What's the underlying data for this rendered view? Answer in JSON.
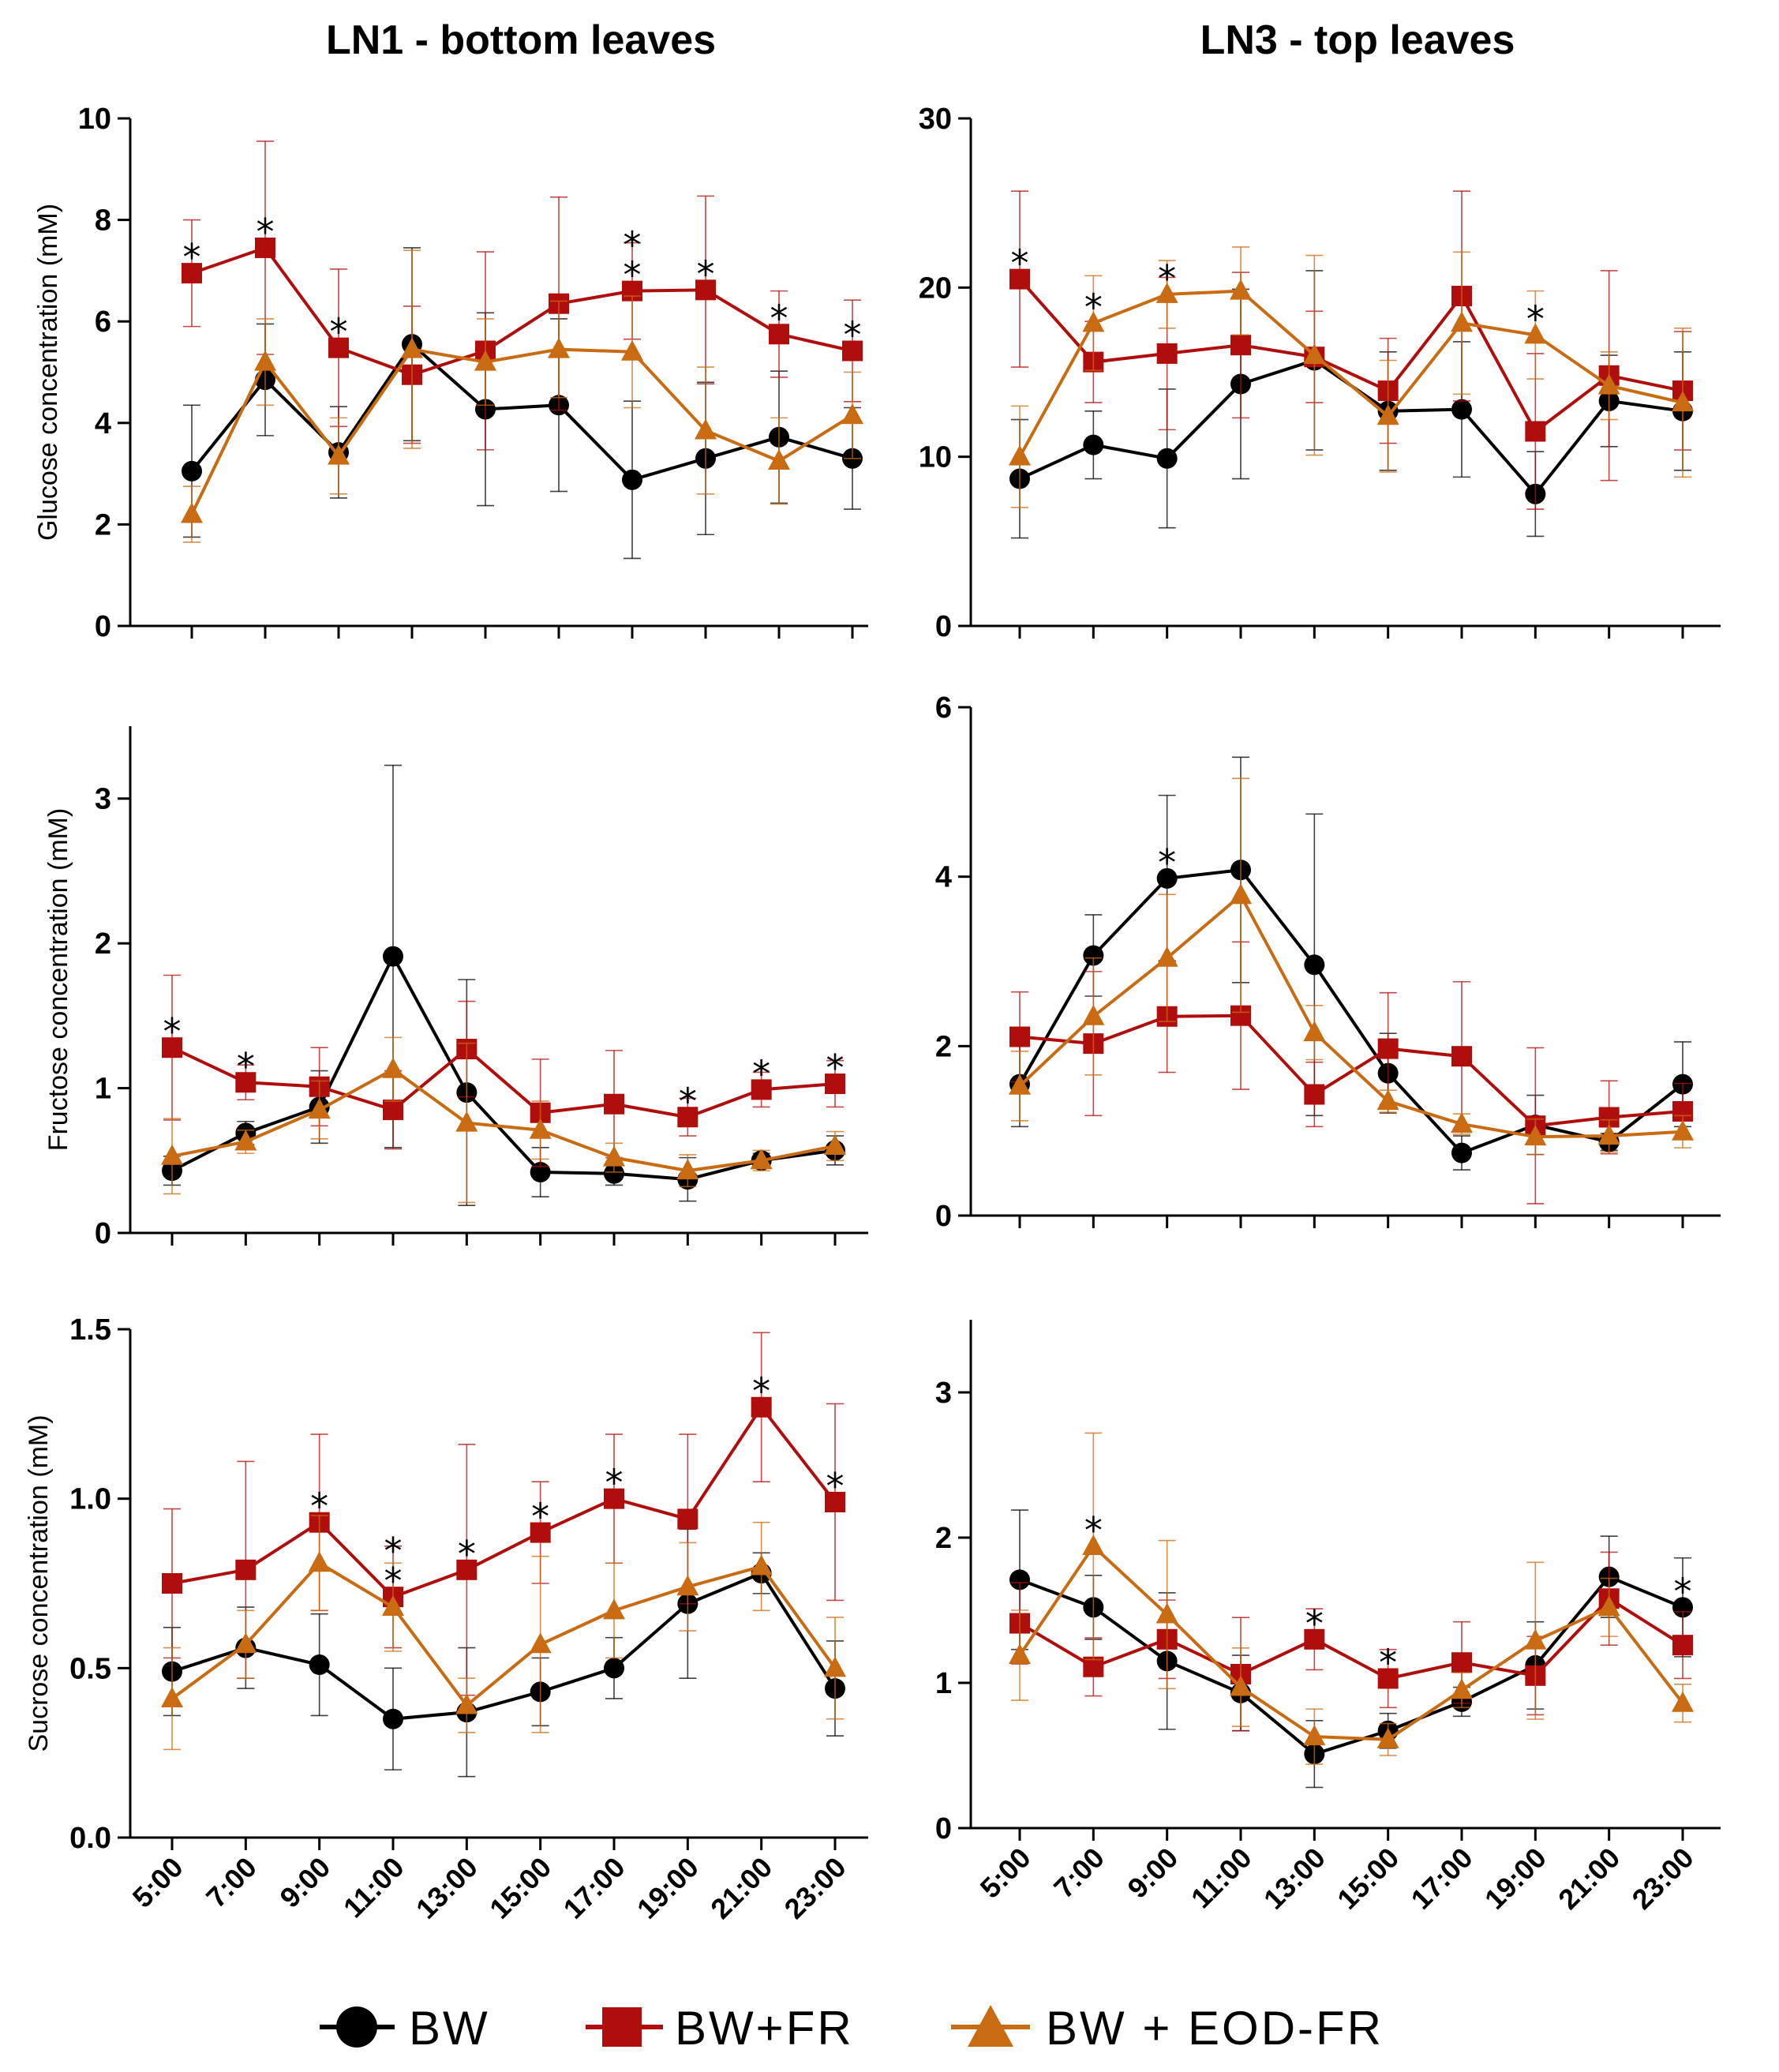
{
  "colors": {
    "BW": "#000000",
    "BW+FR": "#b00d0d",
    "BW + EOD-FR": "#c96b12"
  },
  "legend": {
    "items": [
      {
        "name": "BW",
        "label": "BW",
        "marker": "circle-icon"
      },
      {
        "name": "BW+FR",
        "label": "BW+FR",
        "marker": "square-icon"
      },
      {
        "name": "BW + EOD-FR",
        "label": "BW + EOD-FR",
        "marker": "triangle-icon"
      }
    ]
  },
  "chart_data": [
    {
      "type": "line",
      "id": "ln1-glucose",
      "title": "LN1 - bottom leaves",
      "xlabel": "",
      "ylabel": "Glucose concentration (mM)",
      "categories": [
        "5:00",
        "7:00",
        "9:00",
        "11:00",
        "13:00",
        "15:00",
        "17:00",
        "19:00",
        "21:00",
        "23:00"
      ],
      "ylim": [
        0,
        10
      ],
      "yticks": [
        0,
        2,
        4,
        6,
        8,
        10
      ],
      "ytick_labels": [
        "0",
        "2",
        "4",
        "6",
        "8",
        "10"
      ],
      "grid": false,
      "series": [
        {
          "name": "BW",
          "values": [
            3.05,
            4.85,
            3.42,
            5.55,
            4.27,
            4.35,
            2.88,
            3.3,
            3.72,
            3.3
          ],
          "errors": [
            1.3,
            1.1,
            0.9,
            1.9,
            1.9,
            1.7,
            1.55,
            1.5,
            1.3,
            1.0
          ]
        },
        {
          "name": "BW+FR",
          "values": [
            6.95,
            7.45,
            5.48,
            4.95,
            5.42,
            6.35,
            6.6,
            6.62,
            5.75,
            5.42
          ],
          "errors": [
            1.05,
            2.1,
            1.55,
            1.35,
            1.95,
            2.1,
            0.95,
            1.85,
            0.85,
            1.0
          ]
        },
        {
          "name": "BW + EOD-FR",
          "values": [
            2.2,
            5.2,
            3.35,
            5.45,
            5.2,
            5.45,
            5.4,
            3.85,
            3.25,
            4.15
          ],
          "errors": [
            0.55,
            0.85,
            0.75,
            1.95,
            0.85,
            0.95,
            1.1,
            1.25,
            0.85,
            0.85
          ]
        }
      ],
      "significance": [
        {
          "category": "5:00",
          "labels": [
            "*"
          ]
        },
        {
          "category": "7:00",
          "labels": [
            "*"
          ]
        },
        {
          "category": "9:00",
          "labels": [
            "*"
          ]
        },
        {
          "category": "17:00",
          "labels": [
            "*",
            "*"
          ]
        },
        {
          "category": "19:00",
          "labels": [
            "*"
          ]
        },
        {
          "category": "21:00",
          "labels": [
            "*"
          ]
        },
        {
          "category": "23:00",
          "labels": [
            "*"
          ]
        }
      ]
    },
    {
      "type": "line",
      "id": "ln3-glucose",
      "title": "LN3 - top leaves",
      "xlabel": "",
      "ylabel": "",
      "categories": [
        "5:00",
        "7:00",
        "9:00",
        "11:00",
        "13:00",
        "15:00",
        "17:00",
        "19:00",
        "21:00",
        "23:00"
      ],
      "ylim": [
        0,
        30
      ],
      "yticks": [
        0,
        10,
        20,
        30
      ],
      "ytick_labels": [
        "0",
        "10",
        "20",
        "30"
      ],
      "grid": false,
      "series": [
        {
          "name": "BW",
          "values": [
            8.7,
            10.7,
            9.9,
            14.3,
            15.7,
            12.7,
            12.8,
            7.8,
            13.3,
            12.7
          ],
          "errors": [
            3.5,
            2.0,
            4.1,
            5.6,
            5.3,
            3.5,
            4.0,
            2.5,
            2.7,
            3.5
          ]
        },
        {
          "name": "BW+FR",
          "values": [
            20.5,
            15.6,
            16.1,
            16.6,
            15.9,
            13.9,
            19.5,
            11.5,
            14.8,
            13.9
          ],
          "errors": [
            5.2,
            2.4,
            4.5,
            4.3,
            2.7,
            3.1,
            6.2,
            4.6,
            6.2,
            3.5
          ]
        },
        {
          "name": "BW + EOD-FR",
          "values": [
            10.0,
            17.9,
            19.6,
            19.8,
            16.0,
            12.4,
            17.9,
            17.2,
            14.2,
            13.2
          ],
          "errors": [
            3.0,
            2.8,
            2.0,
            2.6,
            5.9,
            3.3,
            4.2,
            2.6,
            2.0,
            4.4
          ]
        }
      ],
      "significance": [
        {
          "category": "5:00",
          "labels": [
            "*"
          ]
        },
        {
          "category": "7:00",
          "labels": [
            "*"
          ]
        },
        {
          "category": "9:00",
          "labels": [
            "*"
          ]
        },
        {
          "category": "19:00",
          "labels": [
            "*"
          ]
        }
      ]
    },
    {
      "type": "line",
      "id": "ln1-fructose",
      "title": "",
      "xlabel": "",
      "ylabel": "Fructose concentration (mM)",
      "categories": [
        "5:00",
        "7:00",
        "9:00",
        "11:00",
        "13:00",
        "15:00",
        "17:00",
        "19:00",
        "21:00",
        "23:00"
      ],
      "ylim": [
        0,
        3.5
      ],
      "yticks": [
        0,
        1,
        2,
        3
      ],
      "ytick_labels": [
        "0",
        "1",
        "2",
        "3"
      ],
      "grid": false,
      "series": [
        {
          "name": "BW",
          "values": [
            0.43,
            0.69,
            0.87,
            1.91,
            0.97,
            0.42,
            0.41,
            0.37,
            0.5,
            0.57
          ],
          "errors": [
            0.1,
            0.08,
            0.25,
            1.32,
            0.78,
            0.17,
            0.08,
            0.15,
            0.05,
            0.1
          ]
        },
        {
          "name": "BW+FR",
          "values": [
            1.28,
            1.04,
            1.01,
            0.85,
            1.27,
            0.83,
            0.89,
            0.8,
            0.99,
            1.03
          ],
          "errors": [
            0.5,
            0.12,
            0.27,
            0.27,
            0.33,
            0.37,
            0.37,
            0.13,
            0.12,
            0.16
          ]
        },
        {
          "name": "BW + EOD-FR",
          "values": [
            0.53,
            0.63,
            0.85,
            1.13,
            0.76,
            0.71,
            0.52,
            0.43,
            0.5,
            0.6
          ],
          "errors": [
            0.26,
            0.08,
            0.2,
            0.22,
            0.55,
            0.2,
            0.1,
            0.11,
            0.07,
            0.1
          ]
        }
      ],
      "significance": [
        {
          "category": "5:00",
          "labels": [
            "*"
          ]
        },
        {
          "category": "7:00",
          "labels": [
            "*"
          ]
        },
        {
          "category": "19:00",
          "labels": [
            "*"
          ]
        },
        {
          "category": "21:00",
          "labels": [
            "*"
          ]
        },
        {
          "category": "23:00",
          "labels": [
            "*"
          ]
        }
      ]
    },
    {
      "type": "line",
      "id": "ln3-fructose",
      "title": "",
      "xlabel": "",
      "ylabel": "",
      "categories": [
        "5:00",
        "7:00",
        "9:00",
        "11:00",
        "13:00",
        "15:00",
        "17:00",
        "19:00",
        "21:00",
        "23:00"
      ],
      "ylim": [
        0,
        6
      ],
      "yticks": [
        0,
        2,
        4,
        6
      ],
      "ytick_labels": [
        "0",
        "2",
        "4",
        "6"
      ],
      "grid": false,
      "series": [
        {
          "name": "BW",
          "values": [
            1.55,
            3.07,
            3.98,
            4.08,
            2.96,
            1.68,
            0.74,
            1.07,
            0.87,
            1.55
          ],
          "errors": [
            0.5,
            0.48,
            0.98,
            1.33,
            1.78,
            0.47,
            0.2,
            0.35,
            0.1,
            0.5
          ]
        },
        {
          "name": "BW+FR",
          "values": [
            2.11,
            2.03,
            2.35,
            2.36,
            1.43,
            1.97,
            1.88,
            1.06,
            1.16,
            1.23
          ],
          "errors": [
            0.53,
            0.85,
            0.66,
            0.87,
            0.38,
            0.66,
            0.88,
            0.92,
            0.43,
            0.33
          ]
        },
        {
          "name": "BW + EOD-FR",
          "values": [
            1.53,
            2.35,
            3.04,
            3.78,
            2.16,
            1.35,
            1.08,
            0.93,
            0.94,
            0.99
          ],
          "errors": [
            0.41,
            0.69,
            0.75,
            1.38,
            0.32,
            0.13,
            0.12,
            0.21,
            0.19,
            0.19
          ]
        }
      ],
      "significance": [
        {
          "category": "9:00",
          "labels": [
            "*"
          ]
        }
      ]
    },
    {
      "type": "line",
      "id": "ln1-sucrose",
      "title": "",
      "xlabel": "",
      "ylabel": "Sucrose concentration (mM)",
      "categories": [
        "5:00",
        "7:00",
        "9:00",
        "11:00",
        "13:00",
        "15:00",
        "17:00",
        "19:00",
        "21:00",
        "23:00"
      ],
      "ylim": [
        0,
        1.5
      ],
      "yticks": [
        0,
        0.5,
        1.0,
        1.5
      ],
      "ytick_labels": [
        "0.0",
        "0.5",
        "1.0",
        "1.5"
      ],
      "grid": false,
      "series": [
        {
          "name": "BW",
          "values": [
            0.49,
            0.56,
            0.51,
            0.35,
            0.37,
            0.43,
            0.5,
            0.69,
            0.78,
            0.44
          ],
          "errors": [
            0.13,
            0.12,
            0.15,
            0.15,
            0.19,
            0.1,
            0.09,
            0.22,
            0.06,
            0.14
          ]
        },
        {
          "name": "BW+FR",
          "values": [
            0.75,
            0.79,
            0.93,
            0.71,
            0.79,
            0.9,
            1.0,
            0.94,
            1.27,
            0.99
          ],
          "errors": [
            0.22,
            0.32,
            0.26,
            0.15,
            0.37,
            0.15,
            0.19,
            0.25,
            0.22,
            0.29
          ]
        },
        {
          "name": "BW + EOD-FR",
          "values": [
            0.41,
            0.57,
            0.81,
            0.68,
            0.39,
            0.57,
            0.67,
            0.74,
            0.8,
            0.5
          ],
          "errors": [
            0.15,
            0.1,
            0.14,
            0.13,
            0.08,
            0.26,
            0.14,
            0.13,
            0.13,
            0.15
          ]
        }
      ],
      "significance": [
        {
          "category": "9:00",
          "labels": [
            "*"
          ]
        },
        {
          "category": "11:00",
          "labels": [
            "*",
            "*"
          ]
        },
        {
          "category": "13:00",
          "labels": [
            "*"
          ]
        },
        {
          "category": "15:00",
          "labels": [
            "*"
          ]
        },
        {
          "category": "17:00",
          "labels": [
            "*"
          ]
        },
        {
          "category": "21:00",
          "labels": [
            "*"
          ]
        },
        {
          "category": "23:00",
          "labels": [
            "*"
          ]
        }
      ]
    },
    {
      "type": "line",
      "id": "ln3-sucrose",
      "title": "",
      "xlabel": "",
      "ylabel": "",
      "categories": [
        "5:00",
        "7:00",
        "9:00",
        "11:00",
        "13:00",
        "15:00",
        "17:00",
        "19:00",
        "21:00",
        "23:00"
      ],
      "ylim": [
        0,
        3.5
      ],
      "yticks": [
        0,
        1,
        2,
        3
      ],
      "ytick_labels": [
        "0",
        "1",
        "2",
        "3"
      ],
      "grid": false,
      "series": [
        {
          "name": "BW",
          "values": [
            1.71,
            1.52,
            1.15,
            0.93,
            0.51,
            0.67,
            0.87,
            1.12,
            1.73,
            1.52
          ],
          "errors": [
            0.48,
            0.22,
            0.47,
            0.26,
            0.23,
            0.12,
            0.1,
            0.3,
            0.28,
            0.34
          ]
        },
        {
          "name": "BW+FR",
          "values": [
            1.41,
            1.11,
            1.3,
            1.06,
            1.3,
            1.03,
            1.14,
            1.05,
            1.58,
            1.26
          ],
          "errors": [
            0.28,
            0.2,
            0.27,
            0.39,
            0.21,
            0.2,
            0.28,
            0.27,
            0.32,
            0.23
          ]
        },
        {
          "name": "BW + EOD-FR",
          "values": [
            1.19,
            1.94,
            1.47,
            0.97,
            0.63,
            0.61,
            0.95,
            1.29,
            1.52,
            0.86
          ],
          "errors": [
            0.31,
            0.78,
            0.51,
            0.27,
            0.19,
            0.11,
            0.12,
            0.54,
            0.2,
            0.13
          ]
        }
      ],
      "significance": [
        {
          "category": "7:00",
          "labels": [
            "*"
          ]
        },
        {
          "category": "13:00",
          "labels": [
            "*"
          ]
        },
        {
          "category": "15:00",
          "labels": [
            "*"
          ]
        },
        {
          "category": "23:00",
          "labels": [
            "*"
          ]
        }
      ]
    }
  ]
}
